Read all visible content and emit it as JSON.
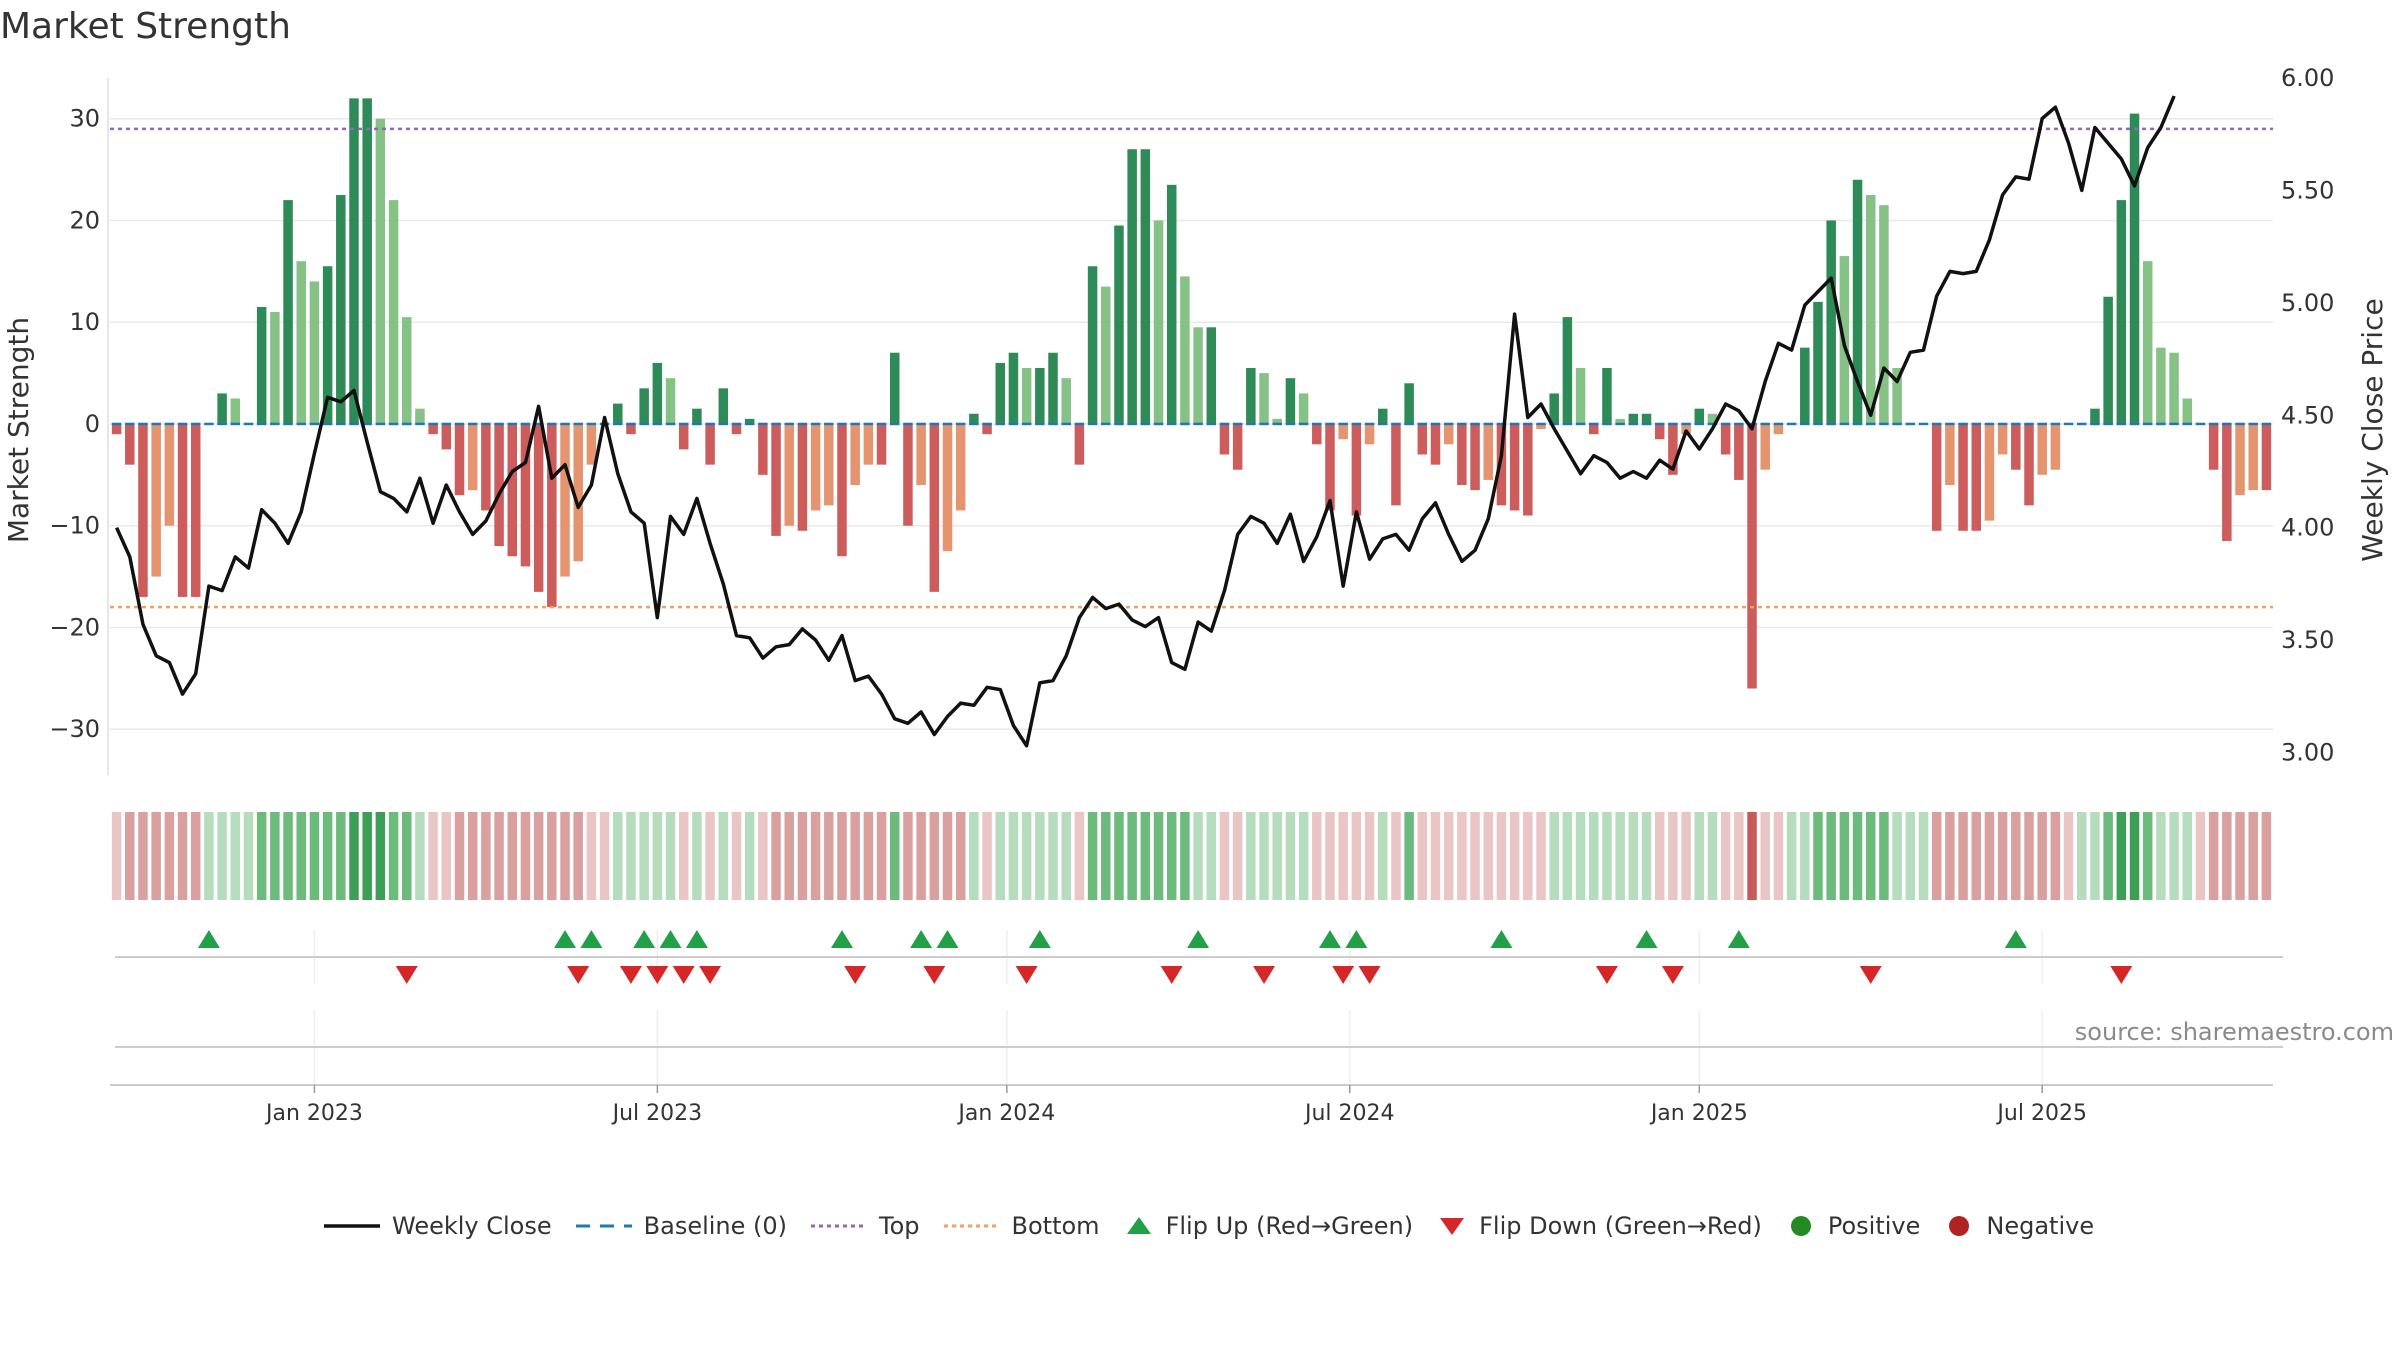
{
  "title": "Market Strength",
  "source": "source: sharemaestro.com",
  "colors": {
    "pos_strong": "#2e8b57",
    "pos_weak": "#86c186",
    "neg_strong": "#cd5c5c",
    "neg_weak": "#e59470",
    "close_line": "#111111",
    "baseline": "#1f77b4",
    "top_line": "#9467bd",
    "bottom_line": "#f0a060",
    "flip_up": "#22a048",
    "flip_down": "#d62728",
    "positive": "#228b22",
    "negative": "#b22222"
  },
  "legend": [
    {
      "label": "Weekly Close",
      "icon": "line-solid",
      "color": "#111111"
    },
    {
      "label": "Baseline (0)",
      "icon": "line-dashed",
      "color": "#1f77b4"
    },
    {
      "label": "Top",
      "icon": "line-dotted",
      "color": "#9467bd"
    },
    {
      "label": "Bottom",
      "icon": "line-dotted",
      "color": "#f0a060"
    },
    {
      "label": "Flip Up (Red→Green)",
      "icon": "triangle-up",
      "color": "#22a048"
    },
    {
      "label": "Flip Down (Green→Red)",
      "icon": "triangle-down",
      "color": "#d62728"
    },
    {
      "label": "Positive",
      "icon": "dot",
      "color": "#228b22"
    },
    {
      "label": "Negative",
      "icon": "dot",
      "color": "#b22222"
    }
  ],
  "chart_data": {
    "type": "bar+line",
    "x_tick_labels": [
      "Jan 2023",
      "Jul 2023",
      "Jan 2024",
      "Jul 2024",
      "Jan 2025",
      "Jul 2025"
    ],
    "x_tick_weeks": [
      15,
      41,
      67.5,
      93.5,
      120,
      146
    ],
    "y_left_label": "Market Strength",
    "y_left_ticks": [
      -30,
      -20,
      -10,
      0,
      10,
      20,
      30
    ],
    "y_left_range": [
      -34.5,
      34
    ],
    "y_right_label": "Weekly Close Price",
    "y_right_ticks": [
      "3.00",
      "3.50",
      "4.00",
      "4.50",
      "5.00",
      "5.50",
      "6.00"
    ],
    "y_right_range": [
      2.9,
      6.0
    ],
    "top_level": 29,
    "bottom_level": -18,
    "baseline": 0,
    "strength": [
      -1,
      -4,
      -17,
      -15,
      -10,
      -17,
      -17,
      0,
      3,
      2.5,
      0,
      11.5,
      11,
      22,
      16,
      14,
      15.5,
      22.5,
      32,
      32,
      30,
      22,
      10.5,
      1.5,
      -1,
      -2.5,
      -7,
      -6.5,
      -8.5,
      -12,
      -13,
      -14,
      -16.5,
      -18,
      -15,
      -13.5,
      -4,
      0,
      2,
      -1,
      3.5,
      6,
      4.5,
      -2.5,
      1.5,
      -4,
      3.5,
      -1,
      0.5,
      -5,
      -11,
      -10,
      -10.5,
      -8.5,
      -8,
      -13,
      -6,
      -4,
      -4,
      7,
      -10,
      -6,
      -16.5,
      -12.5,
      -8.5,
      1,
      -1,
      6,
      7,
      5.5,
      5.5,
      7,
      4.5,
      -4,
      15.5,
      13.5,
      19.5,
      27,
      27,
      20,
      23.5,
      14.5,
      9.5,
      9.5,
      -3,
      -4.5,
      5.5,
      5,
      0.5,
      4.5,
      3,
      -2,
      -8.5,
      -1.5,
      -9,
      -2,
      1.5,
      -8,
      4,
      -3,
      -4,
      -2,
      -6,
      -6.5,
      -5.5,
      -8,
      -8.5,
      -9,
      -0.5,
      3,
      10.5,
      5.5,
      -1,
      5.5,
      0.5,
      1,
      1,
      -1.5,
      -5,
      -1,
      1.5,
      1,
      -3,
      -5.5,
      -26,
      -4.5,
      -1,
      0,
      7.5,
      12,
      20,
      16.5,
      24,
      22.5,
      21.5,
      5.5,
      0,
      0,
      -10.5,
      -6,
      -10.5,
      -10.5,
      -9.5,
      -3,
      -4.5,
      -8,
      -5,
      -4.5,
      0,
      0,
      1.5,
      12.5,
      22,
      30.5,
      16,
      7.5,
      7,
      2.5,
      0,
      -4.5,
      -11.5,
      -7,
      -6.5,
      -6.5
    ],
    "weekly_close": [
      4.0,
      3.87,
      3.57,
      3.43,
      3.4,
      3.26,
      3.35,
      3.74,
      3.72,
      3.87,
      3.82,
      4.08,
      4.02,
      3.93,
      4.07,
      4.33,
      4.58,
      4.56,
      4.61,
      4.38,
      4.16,
      4.13,
      4.07,
      4.22,
      4.02,
      4.19,
      4.07,
      3.97,
      4.03,
      4.15,
      4.25,
      4.29,
      4.54,
      4.22,
      4.28,
      4.09,
      4.19,
      4.49,
      4.24,
      4.07,
      4.02,
      3.6,
      4.05,
      3.97,
      4.13,
      3.93,
      3.75,
      3.52,
      3.51,
      3.42,
      3.47,
      3.48,
      3.55,
      3.5,
      3.41,
      3.52,
      3.32,
      3.34,
      3.26,
      3.15,
      3.13,
      3.18,
      3.08,
      3.16,
      3.22,
      3.21,
      3.29,
      3.28,
      3.12,
      3.03,
      3.31,
      3.32,
      3.43,
      3.6,
      3.69,
      3.64,
      3.66,
      3.59,
      3.56,
      3.6,
      3.4,
      3.37,
      3.58,
      3.54,
      3.72,
      3.97,
      4.05,
      4.02,
      3.93,
      4.06,
      3.85,
      3.96,
      4.12,
      3.74,
      4.07,
      3.86,
      3.95,
      3.97,
      3.9,
      4.04,
      4.11,
      3.97,
      3.85,
      3.9,
      4.04,
      4.32,
      4.95,
      4.49,
      4.55,
      4.44,
      4.34,
      4.24,
      4.32,
      4.29,
      4.22,
      4.25,
      4.22,
      4.3,
      4.26,
      4.43,
      4.35,
      4.44,
      4.55,
      4.52,
      4.44,
      4.65,
      4.82,
      4.79,
      4.99,
      5.05,
      5.11,
      4.81,
      4.65,
      4.5,
      4.71,
      4.65,
      4.78,
      4.79,
      5.03,
      5.14,
      5.13,
      5.14,
      5.28,
      5.48,
      5.56,
      5.55,
      5.82,
      5.87,
      5.71,
      5.5,
      5.78,
      5.71,
      5.64,
      5.52,
      5.69,
      5.78,
      5.92
    ],
    "signal_strip_levels": [
      -1,
      -2,
      -2,
      -2,
      -2,
      -2,
      -2,
      1,
      1,
      1,
      1,
      2,
      2,
      2,
      2,
      2,
      2,
      2,
      3,
      3,
      3,
      2,
      2,
      1,
      -1,
      -1,
      -2,
      -2,
      -2,
      -2,
      -2,
      -2,
      -2,
      -2,
      -2,
      -2,
      -1,
      -1,
      1,
      1,
      1,
      1,
      1,
      -1,
      1,
      -1,
      1,
      -1,
      1,
      -1,
      -2,
      -2,
      -2,
      -2,
      -2,
      -2,
      -2,
      -2,
      -2,
      2,
      -2,
      -2,
      -2,
      -2,
      -2,
      1,
      -1,
      1,
      1,
      1,
      1,
      1,
      1,
      -1,
      2,
      2,
      2,
      2,
      2,
      2,
      2,
      2,
      1,
      1,
      -1,
      -1,
      1,
      1,
      1,
      1,
      1,
      -1,
      -1,
      -1,
      -1,
      -1,
      1,
      -1,
      2,
      -1,
      -1,
      -1,
      -1,
      -1,
      -1,
      -1,
      -1,
      -1,
      -1,
      1,
      1,
      1,
      1,
      1,
      1,
      1,
      1,
      -1,
      -1,
      -1,
      1,
      1,
      -1,
      -1,
      -3,
      -1,
      -1,
      1,
      1,
      2,
      2,
      2,
      2,
      2,
      2,
      1,
      1,
      1,
      -2,
      -2,
      -2,
      -2,
      -2,
      -2,
      -2,
      -2,
      -2,
      -2,
      -1,
      1,
      1,
      2,
      3,
      3,
      2,
      1,
      1,
      1,
      -1,
      -2,
      -2,
      -2,
      -2,
      -2
    ],
    "flip_up_weeks": [
      7,
      34,
      36,
      40,
      42,
      44,
      55,
      61,
      63,
      70,
      82,
      92,
      94,
      105,
      116,
      123,
      144
    ],
    "flip_down_weeks": [
      22,
      35,
      39,
      41,
      43,
      45,
      56,
      62,
      69,
      80,
      87,
      93,
      95,
      113,
      118,
      133,
      152
    ]
  }
}
